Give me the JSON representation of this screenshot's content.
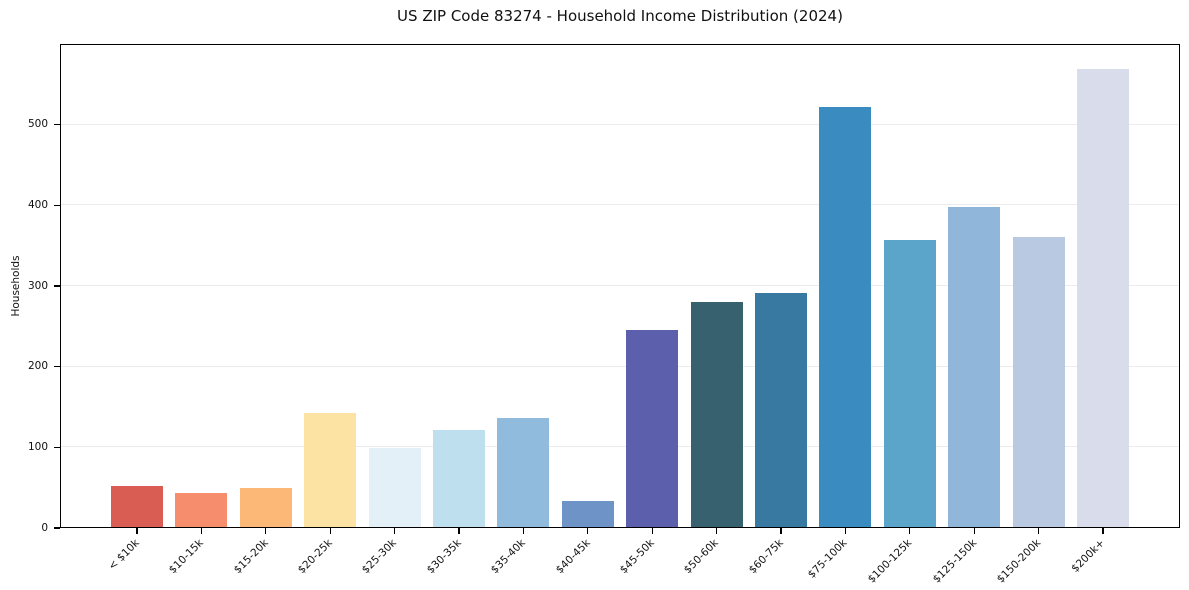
{
  "chart_data": {
    "type": "bar",
    "title": "US ZIP Code 83274 - Household Income Distribution (2024)",
    "xlabel": "",
    "ylabel": "Households",
    "categories": [
      "< $10k",
      "$10-15k",
      "$15-20k",
      "$20-25k",
      "$25-30k",
      "$30-35k",
      "$35-40k",
      "$40-45k",
      "$45-50k",
      "$50-60k",
      "$60-75k",
      "$75-100k",
      "$100-125k",
      "$125-150k",
      "$150-200k",
      "$200k+"
    ],
    "values": [
      52,
      44,
      50,
      143,
      99,
      122,
      136,
      34,
      245,
      280,
      291,
      522,
      357,
      398,
      361,
      569
    ],
    "bar_colors": [
      "#d95d53",
      "#f68e6e",
      "#fbb877",
      "#fde3a3",
      "#e4f0f7",
      "#bedfee",
      "#90bbdc",
      "#6e93c6",
      "#5c60ac",
      "#37616f",
      "#3779a0",
      "#3a8cc0",
      "#5ba4ca",
      "#90b6da",
      "#b9c9e1",
      "#d9dcea"
    ],
    "ylim": [
      0,
      600
    ],
    "yticks": [
      0,
      100,
      200,
      300,
      400,
      500
    ],
    "grid": "horizontal",
    "legend": "none",
    "x_tick_rotation_deg": 45
  }
}
